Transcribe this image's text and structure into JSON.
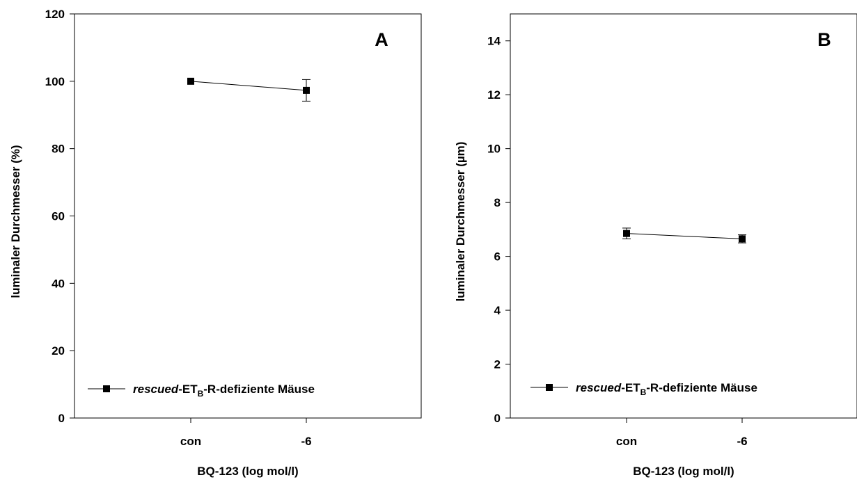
{
  "chart_data": [
    {
      "type": "line",
      "panel_label": "A",
      "categories": [
        "con",
        "-6"
      ],
      "series": [
        {
          "name": "rescued-ETB-R-defiziente Mäuse",
          "values": [
            100.0,
            97.3
          ],
          "errors": [
            0.0,
            3.2
          ]
        }
      ],
      "title": "",
      "xlabel": "BQ-123 (log mol/l)",
      "ylabel": "luminaler Durchmesser (%)",
      "ylim": [
        0,
        120
      ],
      "yticks": [
        "0",
        "20",
        "40",
        "60",
        "80",
        "100",
        "120"
      ],
      "grid": false,
      "legend_position": "bottom-left",
      "legend": {
        "italic": "rescued",
        "mid": "-ET",
        "sub": "B",
        "tail": "-R-defiziente Mäuse"
      }
    },
    {
      "type": "line",
      "panel_label": "B",
      "categories": [
        "con",
        "-6"
      ],
      "series": [
        {
          "name": "rescued-ETB-R-defiziente Mäuse",
          "values": [
            6.85,
            6.65
          ],
          "errors": [
            0.2,
            0.15
          ]
        }
      ],
      "title": "",
      "xlabel": "BQ-123 (log mol/l)",
      "ylabel": "luminaler Durchmesser (µm)",
      "ylim": [
        0,
        15
      ],
      "yticks": [
        "0",
        "2",
        "4",
        "6",
        "8",
        "10",
        "12",
        "14"
      ],
      "grid": false,
      "legend_position": "bottom-left",
      "legend": {
        "italic": "rescued",
        "mid": "-ET",
        "sub": "B",
        "tail": "-R-defiziente Mäuse"
      }
    }
  ]
}
